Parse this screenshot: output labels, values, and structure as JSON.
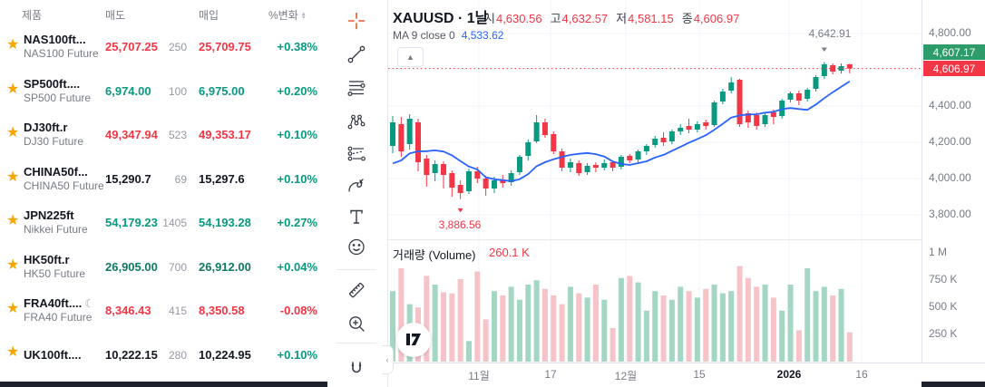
{
  "watchlist": {
    "columns": {
      "product": "제품",
      "sell": "매도",
      "buy": "매입",
      "change": "%변화"
    },
    "rows": [
      {
        "symbol": "NAS100ft...",
        "desc": "NAS100 Future",
        "sell": "25,707.25",
        "qty": "250",
        "buy": "25,709.75",
        "change": "+0.38%",
        "value_color": "#f23645",
        "change_color": "#089981",
        "moon": false
      },
      {
        "symbol": "SP500ft....",
        "desc": "SP500 Future",
        "sell": "6,974.00",
        "qty": "100",
        "buy": "6,975.00",
        "change": "+0.20%",
        "value_color": "#089981",
        "change_color": "#089981",
        "moon": false
      },
      {
        "symbol": "DJ30ft.r",
        "desc": "DJ30 Future",
        "sell": "49,347.94",
        "qty": "523",
        "buy": "49,353.17",
        "change": "+0.10%",
        "value_color": "#f23645",
        "change_color": "#089981",
        "moon": false
      },
      {
        "symbol": "CHINA50f...",
        "desc": "CHINA50 Future",
        "sell": "15,290.7",
        "qty": "69",
        "buy": "15,297.6",
        "change": "+0.10%",
        "value_color": "#131722",
        "change_color": "#089981",
        "moon": false
      },
      {
        "symbol": "JPN225ft",
        "desc": "Nikkei Future",
        "sell": "54,179.23",
        "qty": "1405",
        "buy": "54,193.28",
        "change": "+0.27%",
        "value_color": "#089981",
        "change_color": "#089981",
        "moon": false
      },
      {
        "symbol": "HK50ft.r",
        "desc": "HK50 Future",
        "sell": "26,905.00",
        "qty": "700",
        "buy": "26,912.00",
        "change": "+0.04%",
        "value_color": "#0e7a63",
        "change_color": "#089981",
        "moon": false
      },
      {
        "symbol": "FRA40ft....",
        "desc": "FRA40 Future",
        "sell": "8,346.43",
        "qty": "415",
        "buy": "8,350.58",
        "change": "-0.08%",
        "value_color": "#f23645",
        "change_color": "#f23645",
        "moon": true
      },
      {
        "symbol": "UK100ft....",
        "desc": "",
        "sell": "10,222.15",
        "qty": "280",
        "buy": "10,224.95",
        "change": "+0.10%",
        "value_color": "#131722",
        "change_color": "#089981",
        "moon": false
      }
    ]
  },
  "toolbar": {
    "tools": [
      "crosshair",
      "trend-line",
      "fib-retracement",
      "xabcd-pattern",
      "forecast",
      "brush",
      "text",
      "emoji",
      "measure",
      "zoom-in",
      "magnet"
    ]
  },
  "chart": {
    "symbol_title": "XAUUSD · 1날",
    "ohlc": {
      "open_label": "시",
      "open": "4,630.56",
      "high_label": "고",
      "high": "4,632.57",
      "low_label": "저",
      "low": "4,581.15",
      "close_label": "종",
      "close": "4,606.97"
    },
    "ma_label": "MA 9 close 0",
    "ma_value": "4,533.62",
    "high_marker_label": "4,642.91",
    "low_marker_label": "3,886.56",
    "ask_badge": "4,607.17",
    "last_badge": "4,606.97",
    "volume_title": "거래량 (Volume)",
    "volume_value": "260.1 K",
    "price_axis_labels": [
      "4,800.00",
      "4,400.00",
      "4,200.00",
      "4,000.00",
      "3,800.00"
    ],
    "volume_axis_labels": [
      "1 M",
      "750 K",
      "500 K",
      "250 K"
    ],
    "time_axis_labels": [
      "11월",
      "17",
      "12월",
      "15",
      "2026",
      "16"
    ]
  },
  "chart_data": {
    "type": "candlestick",
    "symbol": "XAUUSD",
    "timeframe": "1날",
    "title": "XAUUSD · 1날",
    "visible_price_range": [
      3780,
      4850
    ],
    "price_gridlines": [
      4800,
      4400,
      4200,
      4000,
      3800
    ],
    "volume_gridlines_k": [
      1000,
      750,
      500,
      250
    ],
    "last_price": 4606.97,
    "session_high": 4642.91,
    "session_low": 3886.56,
    "ma_period": 9,
    "ma_last_value": 4533.62,
    "ma_seed_closes": [
      4000,
      3980,
      3990,
      4010,
      4040,
      4080,
      4140,
      4200
    ],
    "candles": [
      [
        4180,
        4345,
        4140,
        4310
      ],
      [
        4300,
        4340,
        4120,
        4150
      ],
      [
        4190,
        4355,
        4160,
        4330
      ],
      [
        4310,
        4330,
        4040,
        4090
      ],
      [
        4110,
        4130,
        3955,
        4020
      ],
      [
        4030,
        4100,
        3985,
        4080
      ],
      [
        4080,
        4095,
        3945,
        4020
      ],
      [
        4030,
        4045,
        3900,
        3950
      ],
      [
        3965,
        3990,
        3886.56,
        3920
      ],
      [
        3930,
        4055,
        3915,
        4040
      ],
      [
        4040,
        4065,
        3975,
        4000
      ],
      [
        4000,
        4015,
        3905,
        3945
      ],
      [
        3945,
        4010,
        3920,
        3990
      ],
      [
        3995,
        4020,
        3950,
        3975
      ],
      [
        3980,
        4045,
        3960,
        4030
      ],
      [
        4035,
        4130,
        4020,
        4120
      ],
      [
        4125,
        4215,
        4100,
        4200
      ],
      [
        4205,
        4350,
        4195,
        4310
      ],
      [
        4310,
        4330,
        4225,
        4240
      ],
      [
        4245,
        4260,
        4135,
        4150
      ],
      [
        4150,
        4165,
        4040,
        4060
      ],
      [
        4060,
        4110,
        4035,
        4090
      ],
      [
        4085,
        4100,
        4015,
        4030
      ],
      [
        4035,
        4085,
        4020,
        4070
      ],
      [
        4075,
        4090,
        4035,
        4060
      ],
      [
        4060,
        4105,
        4045,
        4085
      ],
      [
        4090,
        4100,
        4040,
        4060
      ],
      [
        4065,
        4130,
        4050,
        4120
      ],
      [
        4125,
        4135,
        4085,
        4100
      ],
      [
        4105,
        4160,
        4090,
        4150
      ],
      [
        4150,
        4190,
        4130,
        4180
      ],
      [
        4185,
        4235,
        4170,
        4220
      ],
      [
        4225,
        4255,
        4180,
        4200
      ],
      [
        4205,
        4270,
        4190,
        4260
      ],
      [
        4260,
        4300,
        4240,
        4280
      ],
      [
        4290,
        4330,
        4250,
        4270
      ],
      [
        4270,
        4315,
        4255,
        4300
      ],
      [
        4310,
        4325,
        4270,
        4290
      ],
      [
        4295,
        4430,
        4285,
        4420
      ],
      [
        4425,
        4495,
        4410,
        4480
      ],
      [
        4485,
        4560,
        4470,
        4530
      ],
      [
        4545,
        4550,
        4285,
        4300
      ],
      [
        4360,
        4375,
        4280,
        4310
      ],
      [
        4350,
        4365,
        4270,
        4290
      ],
      [
        4300,
        4360,
        4285,
        4350
      ],
      [
        4365,
        4380,
        4300,
        4340
      ],
      [
        4345,
        4440,
        4330,
        4430
      ],
      [
        4435,
        4480,
        4420,
        4470
      ],
      [
        4470,
        4485,
        4405,
        4430
      ],
      [
        4440,
        4500,
        4425,
        4490
      ],
      [
        4495,
        4570,
        4480,
        4560
      ],
      [
        4565,
        4642.91,
        4550,
        4630
      ],
      [
        4625,
        4635,
        4575,
        4590
      ],
      [
        4595,
        4635,
        4580,
        4620
      ],
      [
        4630.56,
        4632.57,
        4581.15,
        4606.97
      ]
    ],
    "volumes_k": [
      640,
      850,
      520,
      490,
      780,
      700,
      630,
      620,
      750,
      180,
      820,
      380,
      640,
      600,
      680,
      560,
      700,
      740,
      660,
      600,
      520,
      680,
      620,
      580,
      700,
      560,
      300,
      760,
      780,
      720,
      460,
      640,
      600,
      560,
      680,
      640,
      580,
      660,
      700,
      620,
      640,
      870,
      760,
      680,
      700,
      580,
      460,
      700,
      280,
      850,
      640,
      680,
      600,
      660,
      260.1
    ],
    "colors": {
      "up": "#089981",
      "down": "#f23645",
      "ma": "#2962ff",
      "volume_up": "#a3d7c4",
      "volume_down": "#f6c3c9",
      "last_line": "#f23645",
      "ask_badge_bg": "#2e9c6a",
      "last_badge_bg": "#f23645",
      "grid": "#f0f3fa"
    }
  }
}
